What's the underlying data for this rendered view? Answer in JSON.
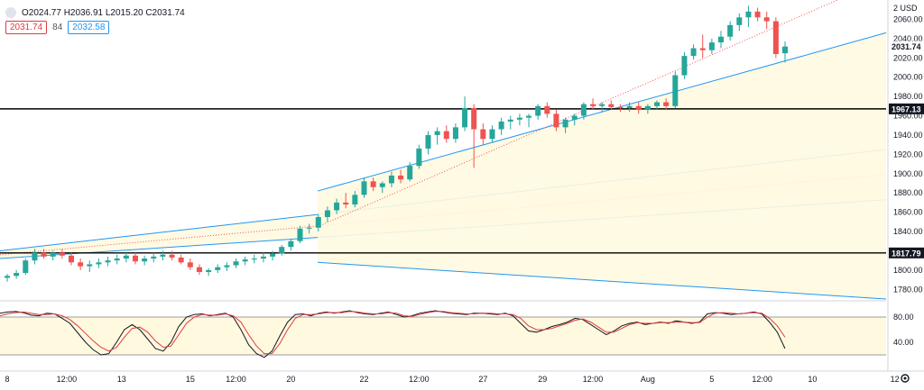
{
  "legend": {
    "ohlc_text": "O2024.77  H2036.91  L2015.20  C2031.74",
    "regression_upper": "2031.74",
    "regression_length": "84",
    "regression_lower": "2032.58"
  },
  "price_axis": {
    "currency_label": "2 USD",
    "tick_labels": [
      "2060.00",
      "2040.00",
      "2020.00",
      "2000.00",
      "1980.00",
      "1960.00",
      "1940.00",
      "1920.00",
      "1900.00",
      "1880.00",
      "1860.00",
      "1840.00",
      "1820.00",
      "1800.00",
      "1780.00"
    ],
    "last_price_tag": "2031.74",
    "hline_tags": [
      "1967.13",
      "1817.79"
    ]
  },
  "oscillator_axis": {
    "tick_labels": [
      "80.00",
      "40.00"
    ]
  },
  "time_axis": {
    "tick_labels": [
      "8",
      "12:00",
      "13",
      "15",
      "12:00",
      "20",
      "22",
      "12:00",
      "27",
      "29",
      "12:00",
      "Aug",
      "5",
      "12:00",
      "10",
      "12"
    ]
  },
  "colors": {
    "up": "#26a69a",
    "down": "#ef5350",
    "channel_line": "#2196f3",
    "channel_fill": "#fff9e0",
    "hline": "#000000",
    "stoch_k": "#131722",
    "stoch_d": "#e03a3e",
    "stoch_band_fill": "#fff9e0"
  },
  "icons": {
    "settings": "gear-icon",
    "symbol": "symbol-chip-icon"
  },
  "chart_data": [
    {
      "type": "candlestick",
      "title": "",
      "xlabel": "",
      "ylabel": "USD",
      "ylim": [
        1770,
        2080
      ],
      "horizontal_lines": [
        1967.13,
        1817.79
      ],
      "last_value": 2031.74,
      "candles": [
        [
          1792,
          1796,
          1788,
          1794
        ],
        [
          1794,
          1800,
          1791,
          1797
        ],
        [
          1797,
          1812,
          1795,
          1810
        ],
        [
          1810,
          1822,
          1806,
          1818
        ],
        [
          1818,
          1822,
          1812,
          1814
        ],
        [
          1814,
          1820,
          1810,
          1818
        ],
        [
          1818,
          1822,
          1812,
          1815
        ],
        [
          1815,
          1818,
          1805,
          1808
        ],
        [
          1808,
          1812,
          1800,
          1804
        ],
        [
          1804,
          1810,
          1798,
          1806
        ],
        [
          1806,
          1812,
          1802,
          1808
        ],
        [
          1808,
          1814,
          1804,
          1810
        ],
        [
          1810,
          1816,
          1806,
          1812
        ],
        [
          1812,
          1818,
          1808,
          1815
        ],
        [
          1815,
          1818,
          1806,
          1809
        ],
        [
          1809,
          1815,
          1805,
          1812
        ],
        [
          1812,
          1818,
          1808,
          1814
        ],
        [
          1814,
          1820,
          1810,
          1816
        ],
        [
          1816,
          1820,
          1810,
          1813
        ],
        [
          1813,
          1816,
          1806,
          1808
        ],
        [
          1808,
          1812,
          1800,
          1803
        ],
        [
          1803,
          1806,
          1795,
          1798
        ],
        [
          1798,
          1802,
          1794,
          1800
        ],
        [
          1800,
          1806,
          1797,
          1803
        ],
        [
          1803,
          1808,
          1799,
          1805
        ],
        [
          1805,
          1812,
          1802,
          1809
        ],
        [
          1809,
          1814,
          1805,
          1811
        ],
        [
          1811,
          1816,
          1807,
          1812
        ],
        [
          1812,
          1818,
          1808,
          1814
        ],
        [
          1814,
          1820,
          1810,
          1817
        ],
        [
          1817,
          1826,
          1815,
          1824
        ],
        [
          1824,
          1832,
          1820,
          1830
        ],
        [
          1830,
          1846,
          1828,
          1843
        ],
        [
          1843,
          1848,
          1838,
          1844
        ],
        [
          1844,
          1858,
          1840,
          1855
        ],
        [
          1855,
          1866,
          1850,
          1862
        ],
        [
          1862,
          1874,
          1858,
          1870
        ],
        [
          1870,
          1880,
          1864,
          1868
        ],
        [
          1868,
          1882,
          1865,
          1878
        ],
        [
          1878,
          1896,
          1875,
          1892
        ],
        [
          1892,
          1896,
          1882,
          1886
        ],
        [
          1886,
          1892,
          1880,
          1890
        ],
        [
          1890,
          1902,
          1886,
          1898
        ],
        [
          1898,
          1904,
          1890,
          1894
        ],
        [
          1894,
          1912,
          1892,
          1908
        ],
        [
          1908,
          1930,
          1905,
          1926
        ],
        [
          1926,
          1944,
          1920,
          1940
        ],
        [
          1940,
          1948,
          1930,
          1944
        ],
        [
          1944,
          1950,
          1932,
          1936
        ],
        [
          1936,
          1952,
          1932,
          1948
        ],
        [
          1948,
          1980,
          1944,
          1968
        ],
        [
          1968,
          1972,
          1906,
          1946
        ],
        [
          1946,
          1952,
          1930,
          1936
        ],
        [
          1936,
          1950,
          1932,
          1946
        ],
        [
          1946,
          1958,
          1940,
          1954
        ],
        [
          1954,
          1960,
          1946,
          1956
        ],
        [
          1956,
          1962,
          1950,
          1958
        ],
        [
          1958,
          1962,
          1948,
          1960
        ],
        [
          1960,
          1972,
          1956,
          1970
        ],
        [
          1970,
          1974,
          1958,
          1962
        ],
        [
          1962,
          1966,
          1944,
          1948
        ],
        [
          1948,
          1958,
          1942,
          1956
        ],
        [
          1956,
          1962,
          1950,
          1960
        ],
        [
          1960,
          1974,
          1956,
          1972
        ],
        [
          1972,
          1978,
          1966,
          1970
        ],
        [
          1970,
          1974,
          1964,
          1972
        ],
        [
          1972,
          1976,
          1966,
          1969
        ],
        [
          1969,
          1972,
          1964,
          1968
        ],
        [
          1968,
          1974,
          1964,
          1970
        ],
        [
          1970,
          1974,
          1962,
          1966
        ],
        [
          1966,
          1972,
          1962,
          1970
        ],
        [
          1970,
          1976,
          1966,
          1974
        ],
        [
          1974,
          1978,
          1966,
          1970
        ],
        [
          1970,
          2006,
          1968,
          2002
        ],
        [
          2002,
          2026,
          1998,
          2022
        ],
        [
          2022,
          2034,
          2018,
          2030
        ],
        [
          2030,
          2044,
          2020,
          2028
        ],
        [
          2028,
          2040,
          2024,
          2036
        ],
        [
          2036,
          2048,
          2030,
          2042
        ],
        [
          2042,
          2058,
          2038,
          2054
        ],
        [
          2054,
          2066,
          2048,
          2062
        ],
        [
          2062,
          2074,
          2052,
          2068
        ],
        [
          2068,
          2072,
          2058,
          2062
        ],
        [
          2062,
          2068,
          2050,
          2058
        ],
        [
          2058,
          2062,
          2020,
          2024
        ],
        [
          2024.77,
          2036.91,
          2015.2,
          2031.74
        ]
      ],
      "regression_channels": [
        {
          "start_price": [
            1808,
            1882
          ],
          "end_price": [
            1770,
            2046
          ],
          "mid_end": 2102
        },
        {
          "start_price": [
            1820,
            1812
          ],
          "end_price": [
            1925,
            1873
          ],
          "mid_end": 1899
        }
      ]
    },
    {
      "type": "line",
      "title": "",
      "ylim": [
        0,
        100
      ],
      "band": [
        20,
        80
      ],
      "series": [
        {
          "values": [
            86,
            88,
            89,
            87,
            83,
            82,
            86,
            85,
            78,
            70,
            55,
            40,
            28,
            20,
            22,
            40,
            60,
            68,
            60,
            45,
            30,
            26,
            40,
            65,
            80,
            84,
            85,
            82,
            84,
            86,
            80,
            60,
            36,
            22,
            16,
            26,
            50,
            72,
            84,
            85,
            82,
            86,
            88,
            86,
            88,
            90,
            87,
            85,
            84,
            86,
            88,
            84,
            80,
            82,
            86,
            88,
            90,
            88,
            86,
            85,
            84,
            86,
            86,
            85,
            84,
            86,
            82,
            70,
            58,
            56,
            60,
            65,
            68,
            72,
            78,
            76,
            68,
            60,
            52,
            58,
            66,
            70,
            72,
            68,
            70,
            72,
            70,
            74,
            72,
            70,
            72,
            85,
            87,
            86,
            84,
            85,
            86,
            88,
            85,
            72,
            56,
            30
          ]
        },
        {
          "values": [
            82,
            85,
            87,
            88,
            86,
            84,
            84,
            85,
            82,
            76,
            66,
            54,
            42,
            32,
            26,
            32,
            48,
            62,
            64,
            56,
            42,
            32,
            34,
            52,
            70,
            80,
            84,
            83,
            83,
            85,
            82,
            72,
            52,
            34,
            22,
            22,
            38,
            60,
            78,
            84,
            84,
            85,
            87,
            87,
            87,
            89,
            88,
            86,
            85,
            85,
            87,
            86,
            82,
            81,
            84,
            87,
            89,
            89,
            87,
            86,
            85,
            85,
            86,
            86,
            85,
            85,
            84,
            78,
            66,
            60,
            60,
            62,
            66,
            70,
            75,
            77,
            72,
            64,
            56,
            56,
            62,
            68,
            71,
            70,
            70,
            71,
            71,
            72,
            72,
            71,
            71,
            80,
            86,
            87,
            86,
            85,
            86,
            87,
            86,
            78,
            66,
            48
          ]
        }
      ]
    }
  ]
}
